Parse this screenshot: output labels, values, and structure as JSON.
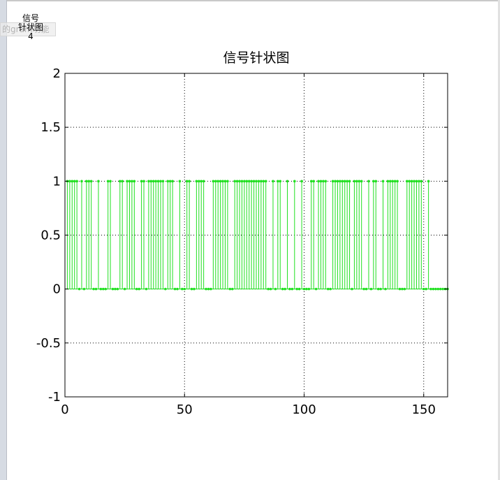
{
  "window": {
    "faded_text": "的gram功能",
    "tab": {
      "line1": "信号",
      "line2": "针状图",
      "line3": "4"
    }
  },
  "colors": {
    "stem": "#20e020",
    "axis": "#000000",
    "grid": "#000000",
    "background": "#ffffff"
  },
  "chart_data": {
    "type": "stem",
    "title": "信号针状图",
    "xlabel": "",
    "ylabel": "",
    "xlim": [
      0,
      160
    ],
    "ylim": [
      -1,
      2
    ],
    "xticks": [
      0,
      50,
      100,
      150
    ],
    "yticks": [
      2,
      1.5,
      1,
      0.5,
      0,
      -0.5,
      -1
    ],
    "ytick_labels": [
      "2",
      "1.5",
      "1",
      "0.5",
      "0",
      "-0.5",
      "-1"
    ],
    "grid": true,
    "grid_style": "dotted",
    "marker": "dot",
    "x": [
      1,
      2,
      3,
      4,
      5,
      6,
      7,
      8,
      9,
      10,
      11,
      12,
      13,
      14,
      15,
      16,
      17,
      18,
      19,
      20,
      21,
      22,
      23,
      24,
      25,
      26,
      27,
      28,
      29,
      30,
      31,
      32,
      33,
      34,
      35,
      36,
      37,
      38,
      39,
      40,
      41,
      42,
      43,
      44,
      45,
      46,
      47,
      48,
      49,
      50,
      51,
      52,
      53,
      54,
      55,
      56,
      57,
      58,
      59,
      60,
      61,
      62,
      63,
      64,
      65,
      66,
      67,
      68,
      69,
      70,
      71,
      72,
      73,
      74,
      75,
      76,
      77,
      78,
      79,
      80,
      81,
      82,
      83,
      84,
      85,
      86,
      87,
      88,
      89,
      90,
      91,
      92,
      93,
      94,
      95,
      96,
      97,
      98,
      99,
      100,
      101,
      102,
      103,
      104,
      105,
      106,
      107,
      108,
      109,
      110,
      111,
      112,
      113,
      114,
      115,
      116,
      117,
      118,
      119,
      120,
      121,
      122,
      123,
      124,
      125,
      126,
      127,
      128,
      129,
      130,
      131,
      132,
      133,
      134,
      135,
      136,
      137,
      138,
      139,
      140,
      141,
      142,
      143,
      144,
      145,
      146,
      147,
      148,
      149,
      150,
      151,
      152,
      153,
      154,
      155,
      156,
      157,
      158,
      159,
      160
    ],
    "values": [
      1,
      1,
      1,
      1,
      1,
      0,
      1,
      0,
      1,
      1,
      1,
      0,
      0,
      1,
      0,
      0,
      0,
      1,
      1,
      0,
      0,
      0,
      1,
      1,
      0,
      1,
      1,
      1,
      1,
      0,
      0,
      1,
      1,
      0,
      1,
      1,
      1,
      1,
      1,
      1,
      1,
      0,
      1,
      1,
      1,
      0,
      0,
      1,
      0,
      0,
      1,
      1,
      0,
      0,
      1,
      1,
      1,
      1,
      0,
      0,
      0,
      1,
      1,
      1,
      1,
      1,
      1,
      1,
      0,
      0,
      1,
      1,
      1,
      1,
      1,
      1,
      1,
      1,
      1,
      1,
      1,
      1,
      1,
      1,
      0,
      0,
      1,
      0,
      1,
      1,
      0,
      0,
      1,
      0,
      0,
      1,
      0,
      0,
      1,
      0,
      0,
      0,
      1,
      1,
      0,
      1,
      1,
      1,
      1,
      0,
      0,
      1,
      1,
      1,
      1,
      1,
      1,
      1,
      1,
      0,
      1,
      1,
      1,
      1,
      0,
      0,
      1,
      0,
      1,
      1,
      0,
      0,
      1,
      0,
      1,
      1,
      1,
      1,
      1,
      0,
      0,
      0,
      1,
      1,
      1,
      1,
      1,
      1,
      1,
      0,
      0,
      1,
      0,
      0,
      0,
      0,
      0,
      0,
      0,
      0
    ]
  }
}
